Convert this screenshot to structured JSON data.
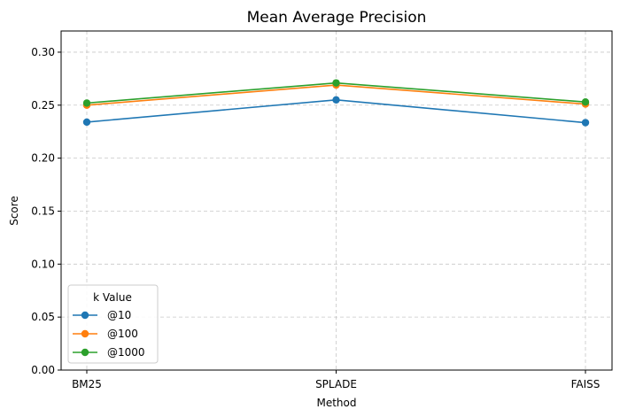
{
  "chart_data": {
    "type": "line",
    "title": "Mean Average Precision",
    "xlabel": "Method",
    "ylabel": "Score",
    "categories": [
      "BM25",
      "SPLADE",
      "FAISS"
    ],
    "ylim": [
      0,
      0.32
    ],
    "yticks": [
      "0.00",
      "0.05",
      "0.10",
      "0.15",
      "0.20",
      "0.25",
      "0.30"
    ],
    "grid": true,
    "legend_title": "k Value",
    "legend_position": "lower-left",
    "series": [
      {
        "name": "@10",
        "color": "#1f77b4",
        "values": [
          0.234,
          0.255,
          0.2335
        ]
      },
      {
        "name": "@100",
        "color": "#ff7f0e",
        "values": [
          0.25,
          0.269,
          0.251
        ]
      },
      {
        "name": "@1000",
        "color": "#2ca02c",
        "values": [
          0.252,
          0.271,
          0.253
        ]
      }
    ]
  }
}
